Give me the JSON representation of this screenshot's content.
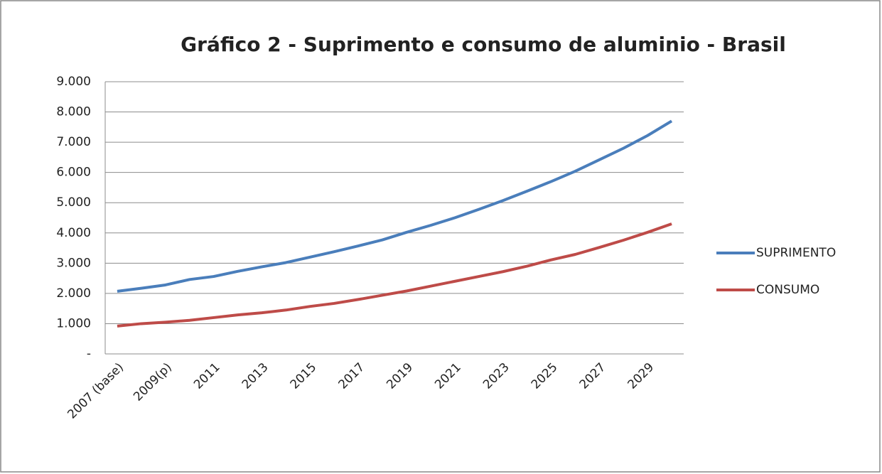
{
  "chart_data": {
    "type": "line",
    "title": "Gráfico 2 - Suprimento e consumo de aluminio - Brasil",
    "categories": [
      "2007 (base)",
      null,
      "2009(p)",
      null,
      "2011",
      null,
      "2013",
      null,
      "2015",
      null,
      "2017",
      null,
      "2019",
      null,
      "2021",
      null,
      "2023",
      null,
      "2025",
      null,
      "2027",
      null,
      "2029",
      null
    ],
    "series": [
      {
        "name": "SUPRIMENTO",
        "color": "#4a7ebb",
        "values": [
          2070,
          2170,
          2280,
          2460,
          2560,
          2730,
          2880,
          3020,
          3200,
          3380,
          3570,
          3770,
          4020,
          4250,
          4500,
          4780,
          5070,
          5380,
          5700,
          6040,
          6420,
          6800,
          7220,
          7700
        ]
      },
      {
        "name": "CONSUMO",
        "color": "#be4b48",
        "values": [
          920,
          1000,
          1050,
          1110,
          1200,
          1290,
          1360,
          1450,
          1570,
          1670,
          1800,
          1940,
          2080,
          2240,
          2400,
          2560,
          2720,
          2900,
          3110,
          3290,
          3520,
          3760,
          4020,
          4300
        ]
      }
    ],
    "ylim": [
      0,
      9000
    ],
    "yticks": [
      {
        "value": 0,
        "label": "-"
      },
      {
        "value": 1000,
        "label": "1.000"
      },
      {
        "value": 2000,
        "label": "2.000"
      },
      {
        "value": 3000,
        "label": "3.000"
      },
      {
        "value": 4000,
        "label": "4.000"
      },
      {
        "value": 5000,
        "label": "5.000"
      },
      {
        "value": 6000,
        "label": "6.000"
      },
      {
        "value": 7000,
        "label": "7.000"
      },
      {
        "value": 8000,
        "label": "8.000"
      },
      {
        "value": 9000,
        "label": "9.000"
      }
    ],
    "grid": true,
    "legend": "right"
  }
}
